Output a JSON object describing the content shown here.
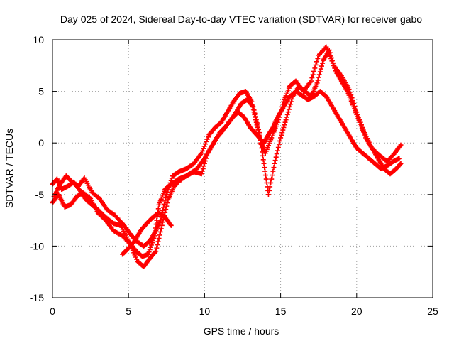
{
  "chart_data": {
    "type": "scatter",
    "title": "Day 025 of 2024, Sidereal Day-to-day VTEC variation (SDTVAR) for receiver gabo",
    "xlabel": "GPS time / hours",
    "ylabel": "SDTVAR / TECUs",
    "xlim": [
      0,
      25
    ],
    "ylim": [
      -15,
      10
    ],
    "x_ticks": [
      0,
      5,
      10,
      15,
      20,
      25
    ],
    "y_ticks": [
      -15,
      -10,
      -5,
      0,
      5,
      10
    ],
    "x_tick_labels": [
      "0",
      "5",
      "10",
      "15",
      "20",
      "25"
    ],
    "y_tick_labels": [
      "-15",
      "-10",
      "-5",
      "0",
      "5",
      "10"
    ],
    "grid": true,
    "marker": "plus",
    "color": "#ff0000",
    "series": [
      {
        "x": [
          0.0,
          0.3,
          0.6,
          1.0,
          1.4,
          1.8,
          2.2,
          2.6,
          3.0,
          3.5,
          4.0,
          4.5,
          5.0,
          5.5,
          5.9,
          6.3,
          6.7,
          7.0,
          7.4,
          7.8,
          8.3,
          8.8,
          9.3,
          9.8,
          10.2,
          10.6,
          11.0,
          11.4,
          11.8,
          12.2,
          12.6,
          13.0,
          13.3,
          13.6,
          13.9,
          14.2,
          14.5,
          14.8,
          15.2,
          15.6,
          16.0,
          16.4,
          16.8,
          17.2,
          17.6,
          18.0,
          18.4,
          18.8,
          19.2,
          19.6,
          20.0,
          20.4,
          20.8,
          21.2,
          21.6,
          22.0,
          22.4,
          22.8
        ],
        "y": [
          -4.0,
          -3.5,
          -4.5,
          -4.2,
          -3.8,
          -4.6,
          -5.5,
          -6.0,
          -6.5,
          -7.2,
          -7.8,
          -8.0,
          -9.5,
          -10.5,
          -11.0,
          -10.8,
          -9.0,
          -6.0,
          -4.5,
          -4.0,
          -3.5,
          -3.2,
          -2.8,
          -3.0,
          -1.0,
          0.0,
          1.0,
          1.6,
          2.4,
          3.0,
          2.5,
          1.5,
          1.0,
          0.5,
          0.0,
          0.8,
          1.5,
          2.5,
          3.5,
          4.5,
          5.0,
          4.6,
          4.2,
          4.5,
          5.0,
          4.5,
          3.5,
          2.5,
          1.5,
          0.5,
          -0.5,
          -1.0,
          -1.5,
          -2.0,
          -2.5,
          -2.2,
          -1.8,
          -1.5
        ]
      },
      {
        "x": [
          0.0,
          0.4,
          0.8,
          1.2,
          1.6,
          2.0,
          2.5,
          3.0,
          3.5,
          4.0,
          4.6,
          5.1,
          5.6,
          6.0,
          6.4,
          6.8,
          7.2,
          7.6,
          8.0,
          8.5,
          9.0,
          9.5,
          10.0,
          10.4,
          10.8,
          11.2,
          11.6,
          12.0,
          12.4,
          12.8,
          13.2,
          13.6,
          13.9,
          14.2,
          14.6,
          15.0,
          15.4,
          15.8,
          16.2,
          16.6,
          17.0,
          17.4,
          17.8,
          18.2,
          18.6,
          19.0,
          19.4,
          19.8,
          20.2,
          20.6,
          21.0,
          21.4,
          21.8,
          22.2,
          22.6,
          22.9
        ],
        "y": [
          -5.8,
          -5.0,
          -6.2,
          -6.0,
          -5.2,
          -4.8,
          -5.4,
          -6.8,
          -7.5,
          -8.5,
          -9.0,
          -9.8,
          -11.5,
          -12.0,
          -11.2,
          -10.5,
          -8.0,
          -5.5,
          -4.2,
          -3.5,
          -3.0,
          -2.5,
          -1.5,
          -0.5,
          0.5,
          1.2,
          2.0,
          2.8,
          3.8,
          4.2,
          3.5,
          1.0,
          -2.0,
          -5.0,
          -2.0,
          0.5,
          2.5,
          4.5,
          5.5,
          5.0,
          4.5,
          5.8,
          8.0,
          9.0,
          7.0,
          6.0,
          5.0,
          3.5,
          2.0,
          0.5,
          -0.5,
          -1.5,
          -2.5,
          -3.0,
          -2.5,
          -2.0
        ]
      },
      {
        "x": [
          0.1,
          0.5,
          0.9,
          1.3,
          1.7,
          2.1,
          2.6,
          3.1,
          3.6,
          4.1,
          4.6,
          5.1,
          5.5,
          6.0,
          6.4,
          6.8,
          7.1,
          7.5,
          7.9,
          8.3,
          8.8,
          9.3,
          9.8,
          10.3,
          10.7,
          11.1,
          11.5,
          11.9,
          12.3,
          12.7,
          13.1,
          13.4,
          13.7,
          14.0,
          14.4,
          14.8,
          15.2,
          15.6,
          16.0,
          16.5,
          17.0,
          17.5,
          18.0,
          18.5,
          19.0,
          19.5,
          20.0,
          20.5,
          21.0,
          21.5,
          22.0,
          22.5,
          22.9
        ],
        "y": [
          -5.2,
          -4.0,
          -3.2,
          -3.8,
          -4.2,
          -3.4,
          -4.8,
          -5.4,
          -6.5,
          -7.0,
          -7.8,
          -8.8,
          -9.5,
          -10.0,
          -9.5,
          -8.5,
          -7.5,
          -5.0,
          -3.2,
          -2.8,
          -2.5,
          -2.0,
          -1.0,
          0.8,
          1.5,
          2.0,
          3.0,
          4.0,
          4.8,
          5.0,
          4.0,
          2.0,
          0.0,
          -1.0,
          0.5,
          2.0,
          4.0,
          5.5,
          6.0,
          5.0,
          6.0,
          8.5,
          9.3,
          7.5,
          6.5,
          5.2,
          3.0,
          1.0,
          -0.5,
          -1.2,
          -1.8,
          -1.0,
          -0.2
        ]
      },
      {
        "x": [
          4.6,
          5.0,
          5.4,
          5.8,
          6.2,
          6.6,
          7.0,
          7.4,
          7.8
        ],
        "y": [
          -10.8,
          -10.2,
          -9.5,
          -8.5,
          -7.8,
          -7.2,
          -6.8,
          -7.2,
          -8.0
        ]
      }
    ]
  }
}
